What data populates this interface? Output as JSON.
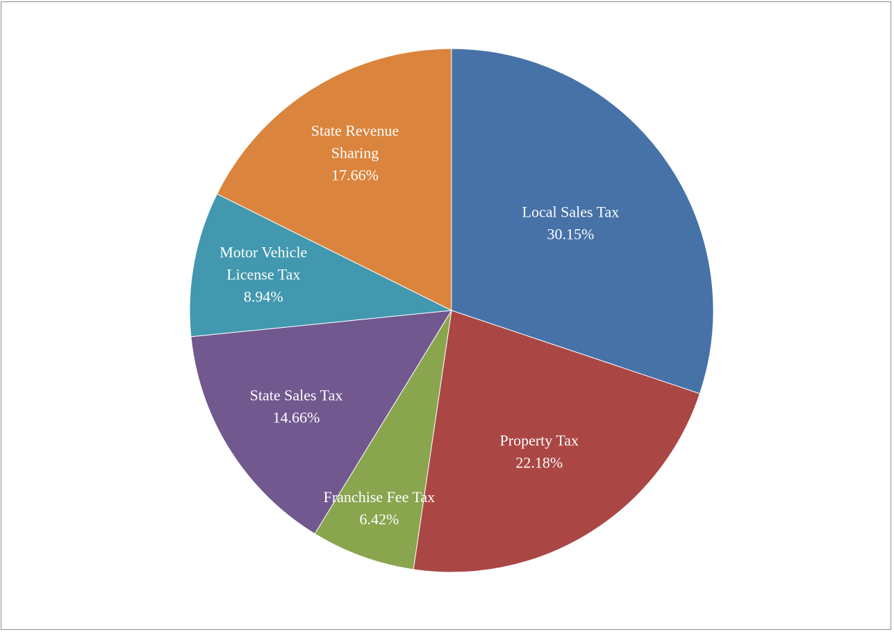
{
  "chart_data": {
    "type": "pie",
    "title": "",
    "start_angle_deg": 0,
    "direction": "clockwise",
    "slices": [
      {
        "label_lines": [
          "Local Sales Tax"
        ],
        "percent_label": "30.15%",
        "value": 30.15,
        "color": "#4672A8"
      },
      {
        "label_lines": [
          "Property Tax"
        ],
        "percent_label": "22.18%",
        "value": 22.18,
        "color": "#AA4644"
      },
      {
        "label_lines": [
          "Franchise Fee Tax"
        ],
        "percent_label": "6.42%",
        "value": 6.42,
        "color": "#89A54E"
      },
      {
        "label_lines": [
          "State Sales Tax"
        ],
        "percent_label": "14.66%",
        "value": 14.66,
        "color": "#71588F"
      },
      {
        "label_lines": [
          "Motor Vehicle",
          "License Tax"
        ],
        "percent_label": "8.94%",
        "value": 8.94,
        "color": "#4198AF"
      },
      {
        "label_lines": [
          "State Revenue",
          "Sharing"
        ],
        "percent_label": "17.66%",
        "value": 17.66,
        "color": "#DB843D"
      }
    ]
  }
}
